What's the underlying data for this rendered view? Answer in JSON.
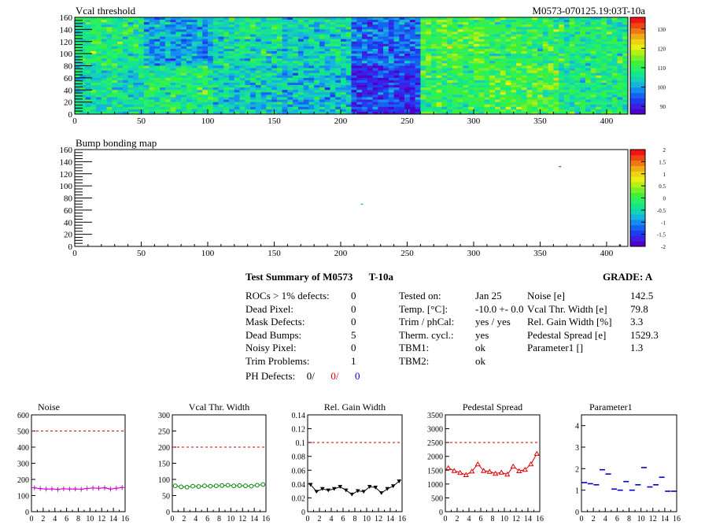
{
  "chart_data": [
    {
      "type": "heatmap",
      "title": "Vcal threshold",
      "module_label": "M0573-070125.19:03T-10a",
      "xlim": [
        0,
        416
      ],
      "ylim": [
        0,
        160
      ],
      "x_ticks": [
        "0",
        "50",
        "100",
        "150",
        "200",
        "250",
        "300",
        "350",
        "400"
      ],
      "y_ticks": [
        "0",
        "20",
        "40",
        "60",
        "80",
        "100",
        "120",
        "140",
        "160"
      ],
      "colorscale_ticks": [
        "90",
        "100",
        "110",
        "120",
        "130"
      ],
      "colorscale_range": [
        86,
        136
      ],
      "roc_mean_values": {
        "top_row": [
          108,
          100,
          106,
          104,
          96,
          112,
          110,
          108
        ],
        "bottom_row": [
          106,
          108,
          104,
          102,
          92,
          110,
          112,
          108
        ]
      }
    },
    {
      "type": "heatmap",
      "title": "Bump bonding map",
      "xlim": [
        0,
        416
      ],
      "ylim": [
        0,
        160
      ],
      "x_ticks": [
        "0",
        "50",
        "100",
        "150",
        "200",
        "250",
        "300",
        "350",
        "400"
      ],
      "y_ticks": [
        "0",
        "20",
        "40",
        "60",
        "80",
        "100",
        "120",
        "140",
        "160"
      ],
      "colorscale_ticks": [
        "-2",
        "-1.5",
        "-1",
        "-0.5",
        "0",
        "0.5",
        "1",
        "1.5",
        "2"
      ],
      "colorscale_range": [
        -2,
        2
      ],
      "points": [
        [
          216,
          70
        ],
        [
          365,
          132
        ],
        [
          410,
          2
        ]
      ]
    },
    {
      "type": "line",
      "title": "Noise",
      "ylim": [
        0,
        600
      ],
      "y_ticks": [
        "0",
        "100",
        "200",
        "300",
        "400",
        "500",
        "600"
      ],
      "x_ticks": [
        "0",
        "2",
        "4",
        "6",
        "8",
        "10",
        "12",
        "14",
        "16"
      ],
      "cut": 500,
      "color": "#cc00cc",
      "marker": "cross",
      "values": [
        148,
        143,
        140,
        141,
        138,
        142,
        140,
        141,
        139,
        144,
        147,
        145,
        148,
        140,
        145,
        150
      ]
    },
    {
      "type": "line",
      "title": "Vcal Thr. Width",
      "ylim": [
        0,
        300
      ],
      "y_ticks": [
        "0",
        "50",
        "100",
        "150",
        "200",
        "250",
        "300"
      ],
      "x_ticks": [
        "0",
        "2",
        "4",
        "6",
        "8",
        "10",
        "12",
        "14",
        "16"
      ],
      "cut": 200,
      "color": "#008800",
      "marker": "circle",
      "values": [
        80,
        77,
        76,
        79,
        78,
        80,
        79,
        80,
        81,
        82,
        80,
        81,
        80,
        79,
        82,
        84
      ]
    },
    {
      "type": "line",
      "title": "Rel. Gain Width",
      "ylim": [
        0,
        0.14
      ],
      "y_ticks": [
        "0",
        "0.02",
        "0.04",
        "0.06",
        "0.08",
        "0.1",
        "0.12",
        "0.14"
      ],
      "x_ticks": [
        "0",
        "2",
        "4",
        "6",
        "8",
        "10",
        "12",
        "14",
        "16"
      ],
      "cut": 0.1,
      "color": "#000000",
      "marker": "triangle-down",
      "values": [
        0.039,
        0.029,
        0.033,
        0.031,
        0.033,
        0.036,
        0.031,
        0.025,
        0.03,
        0.029,
        0.036,
        0.035,
        0.027,
        0.033,
        0.037,
        0.044
      ]
    },
    {
      "type": "line",
      "title": "Pedestal Spread",
      "ylim": [
        0,
        3500
      ],
      "y_ticks": [
        "0",
        "500",
        "1000",
        "1500",
        "2000",
        "2500",
        "3000",
        "3500"
      ],
      "x_ticks": [
        "0",
        "2",
        "4",
        "6",
        "8",
        "10",
        "12",
        "14",
        "16"
      ],
      "cut": 2500,
      "color": "#dd0000",
      "marker": "triangle-up",
      "values": [
        1580,
        1480,
        1410,
        1330,
        1460,
        1720,
        1480,
        1450,
        1380,
        1420,
        1350,
        1640,
        1470,
        1520,
        1720,
        2100
      ]
    },
    {
      "type": "scatter",
      "title": "Parameter1",
      "ylim": [
        0,
        4.5
      ],
      "y_ticks": [
        "0",
        "1",
        "2",
        "3",
        "4"
      ],
      "x_ticks": [
        "0",
        "2",
        "4",
        "6",
        "8",
        "10",
        "12",
        "14",
        "16"
      ],
      "color": "#0000cc",
      "marker": "hbar",
      "values": [
        1.35,
        1.3,
        1.25,
        1.95,
        1.75,
        1.05,
        1.0,
        1.4,
        1.0,
        1.25,
        2.05,
        1.15,
        1.25,
        1.6,
        0.95,
        0.95
      ]
    }
  ],
  "summary": {
    "title": "Test Summary of M0573",
    "tag": "T-10a",
    "grade_label": "GRADE:",
    "grade_value": "A",
    "col1": [
      {
        "label": "ROCs > 1% defects:",
        "value": "0"
      },
      {
        "label": "Dead Pixel:",
        "value": "0"
      },
      {
        "label": "Mask Defects:",
        "value": "0"
      },
      {
        "label": "Dead Bumps:",
        "value": "5"
      },
      {
        "label": "Noisy Pixel:",
        "value": "0"
      },
      {
        "label": "Trim Problems:",
        "value": "1"
      }
    ],
    "ph_label": "PH Defects:",
    "ph_values": [
      "0/",
      "0/",
      "0"
    ],
    "ph_colors": [
      "#000000",
      "#dd0000",
      "#0000cc"
    ],
    "col2": [
      {
        "label": "Tested on:",
        "value": "Jan 25"
      },
      {
        "label": "Temp. [°C]:",
        "value": "-10.0 +- 0.0"
      },
      {
        "label": "Trim / phCal:",
        "value": "yes / yes"
      },
      {
        "label": "Therm. cycl.:",
        "value": "yes"
      },
      {
        "label": "TBM1:",
        "value": "ok"
      },
      {
        "label": "TBM2:",
        "value": "ok"
      }
    ],
    "col3": [
      {
        "label": "Noise [e]",
        "value": "142.5"
      },
      {
        "label": "Vcal Thr. Width [e]",
        "value": "79.8"
      },
      {
        "label": "Rel. Gain Width [%]",
        "value": "3.3"
      },
      {
        "label": "Pedestal Spread [e]",
        "value": "1529.3"
      },
      {
        "label": "Parameter1 []",
        "value": "1.3"
      }
    ]
  }
}
